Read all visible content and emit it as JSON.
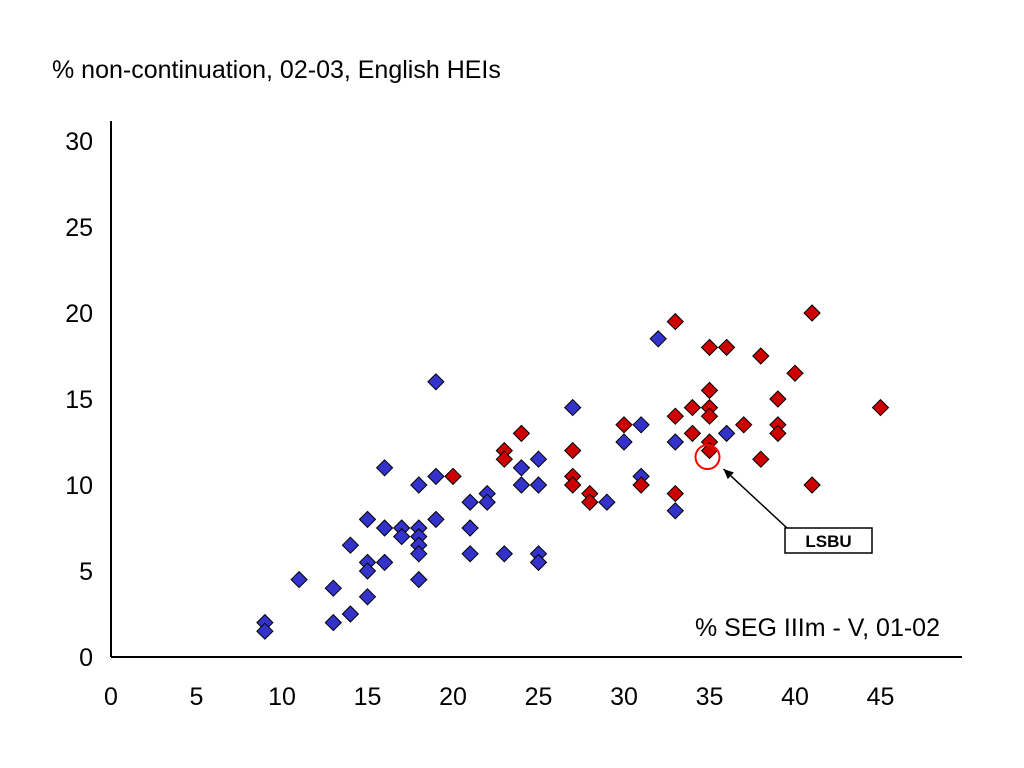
{
  "chart_data": {
    "type": "scatter",
    "title": "% non-continuation, 02-03, English HEIs",
    "xlabel": "% SEG IIIm - V, 01-02",
    "ylabel": "",
    "xlim": [
      0,
      50
    ],
    "ylim": [
      0,
      30
    ],
    "xticks": [
      0,
      5,
      10,
      15,
      20,
      25,
      30,
      35,
      40,
      45
    ],
    "yticks": [
      0,
      5,
      10,
      15,
      20,
      25,
      30
    ],
    "grid": false,
    "legend": "none",
    "series": [
      {
        "color": "#3333cc",
        "marker": "diamond",
        "points": [
          [
            9,
            2
          ],
          [
            9,
            1.5
          ],
          [
            11,
            4.5
          ],
          [
            13,
            4
          ],
          [
            13,
            2
          ],
          [
            14,
            6.5
          ],
          [
            14,
            2.5
          ],
          [
            15,
            8
          ],
          [
            15,
            5.5
          ],
          [
            15,
            5
          ],
          [
            15,
            3.5
          ],
          [
            16,
            11
          ],
          [
            16,
            7.5
          ],
          [
            16,
            5.5
          ],
          [
            17,
            7.5
          ],
          [
            17,
            7
          ],
          [
            18,
            10
          ],
          [
            18,
            7.5
          ],
          [
            18,
            7
          ],
          [
            18,
            6.5
          ],
          [
            18,
            6
          ],
          [
            18,
            4.5
          ],
          [
            19,
            16
          ],
          [
            19,
            10.5
          ],
          [
            19,
            8
          ],
          [
            21,
            9
          ],
          [
            21,
            7.5
          ],
          [
            21,
            6
          ],
          [
            22,
            9.5
          ],
          [
            22,
            9
          ],
          [
            23,
            6
          ],
          [
            24,
            11
          ],
          [
            24,
            10
          ],
          [
            25,
            11.5
          ],
          [
            25,
            10
          ],
          [
            25,
            6
          ],
          [
            25,
            5.5
          ],
          [
            27,
            14.5
          ],
          [
            29,
            9
          ],
          [
            30,
            12.5
          ],
          [
            31,
            13.5
          ],
          [
            31,
            10.5
          ],
          [
            32,
            18.5
          ],
          [
            33,
            12.5
          ],
          [
            33,
            8.5
          ],
          [
            36,
            13
          ]
        ]
      },
      {
        "color": "#cc0000",
        "marker": "diamond",
        "points": [
          [
            20,
            10.5
          ],
          [
            23,
            12
          ],
          [
            23,
            11.5
          ],
          [
            24,
            13
          ],
          [
            27,
            12
          ],
          [
            27,
            10.5
          ],
          [
            27,
            10
          ],
          [
            28,
            9.5
          ],
          [
            28,
            9
          ],
          [
            30,
            13.5
          ],
          [
            31,
            10
          ],
          [
            33,
            19.5
          ],
          [
            33,
            14
          ],
          [
            33,
            9.5
          ],
          [
            34,
            14.5
          ],
          [
            34,
            13
          ],
          [
            35,
            18
          ],
          [
            35,
            15.5
          ],
          [
            35,
            14.5
          ],
          [
            35,
            14
          ],
          [
            35,
            12.5
          ],
          [
            35,
            12
          ],
          [
            36,
            18
          ],
          [
            37,
            13.5
          ],
          [
            38,
            17.5
          ],
          [
            38,
            11.5
          ],
          [
            39,
            15
          ],
          [
            39,
            13.5
          ],
          [
            39,
            13
          ],
          [
            40,
            16.5
          ],
          [
            41,
            20
          ],
          [
            41,
            10
          ],
          [
            45,
            14.5
          ]
        ]
      }
    ],
    "annotations": [
      {
        "text": "LSBU",
        "x": 35,
        "y": 11.8,
        "marker": "circle",
        "color": "#ff0000"
      }
    ]
  }
}
